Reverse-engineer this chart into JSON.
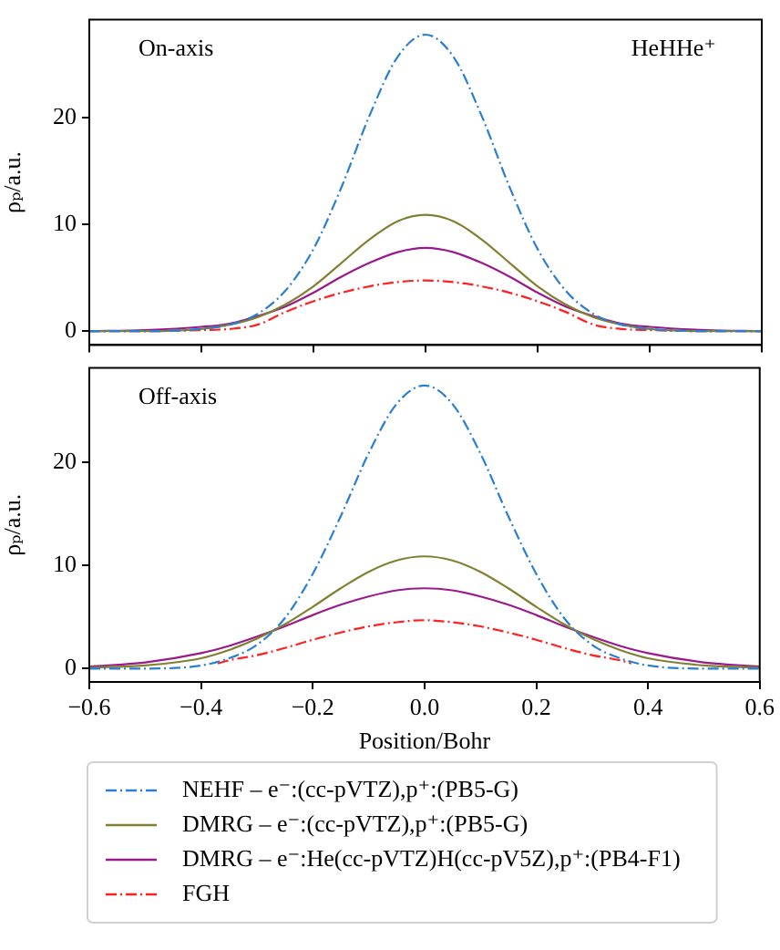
{
  "chart_data": [
    {
      "type": "line",
      "ylabel": "ρₚ/a.u.",
      "annotations": [
        "On-axis",
        "HeHHe⁺"
      ],
      "x": [
        -0.6,
        -0.5,
        -0.4,
        -0.35,
        -0.3,
        -0.25,
        -0.2,
        -0.15,
        -0.1,
        -0.05,
        0,
        0.05,
        0.1,
        0.15,
        0.2,
        0.25,
        0.3,
        0.35,
        0.4,
        0.5,
        0.6
      ],
      "xlim": [
        -0.6,
        0.6
      ],
      "xticks": [
        {
          "value": -0.6,
          "label": null
        },
        {
          "value": -0.4,
          "label": null
        },
        {
          "value": -0.2,
          "label": null
        },
        {
          "value": 0,
          "label": null
        },
        {
          "value": 0.2,
          "label": null
        },
        {
          "value": 0.4,
          "label": null
        },
        {
          "value": 0.6,
          "label": null
        }
      ],
      "ylim": [
        -1.3,
        29.2
      ],
      "yticks": [
        0,
        10,
        20
      ],
      "tick_labels": "y",
      "legend": false,
      "series": [
        {
          "color": "#2a7fd0",
          "line_style": "dashed",
          "values": [
            0,
            0,
            0.2,
            0.6,
            1.6,
            3.8,
            7.7,
            13.5,
            20.2,
            25.7,
            27.8,
            25.7,
            20.2,
            13.5,
            7.7,
            3.8,
            1.6,
            0.6,
            0.2,
            0,
            0
          ]
        },
        {
          "color": "#808033",
          "line_style": "solid",
          "values": [
            0,
            0,
            0.2,
            0.6,
            1.3,
            2.5,
            4.2,
            6.4,
            8.6,
            10.3,
            10.9,
            10.3,
            8.6,
            6.4,
            4.2,
            2.5,
            1.3,
            0.6,
            0.2,
            0,
            0
          ]
        },
        {
          "color": "#9a1a8a",
          "line_style": "solid",
          "values": [
            0,
            0.1,
            0.4,
            0.7,
            1.4,
            2.3,
            3.6,
            5.1,
            6.4,
            7.4,
            7.8,
            7.4,
            6.4,
            5.1,
            3.6,
            2.3,
            1.4,
            0.7,
            0.4,
            0.1,
            0
          ]
        },
        {
          "color": "#ff2020",
          "line_style": "dashed",
          "values": [
            0,
            0,
            0.1,
            0.2,
            0.6,
            1.8,
            2.8,
            3.6,
            4.2,
            4.6,
            4.75,
            4.6,
            4.2,
            3.6,
            2.8,
            1.8,
            0.6,
            0.2,
            0.1,
            0,
            0
          ]
        }
      ]
    },
    {
      "type": "line",
      "xlabel": "Position/Bohr",
      "ylabel": "ρₚ/a.u.",
      "annotations": [
        "Off-axis"
      ],
      "x": [
        -0.6,
        -0.5,
        -0.4,
        -0.35,
        -0.3,
        -0.25,
        -0.2,
        -0.15,
        -0.1,
        -0.05,
        0,
        0.05,
        0.1,
        0.15,
        0.2,
        0.25,
        0.3,
        0.35,
        0.4,
        0.5,
        0.6
      ],
      "xlim": [
        -0.6,
        0.6
      ],
      "xticks": [
        {
          "value": -0.6,
          "label": "−0.6"
        },
        {
          "value": -0.4,
          "label": "−0.4"
        },
        {
          "value": -0.2,
          "label": "−0.2"
        },
        {
          "value": 0,
          "label": "0.0"
        },
        0.2,
        0.4,
        0.6
      ],
      "ylim": [
        -1.3,
        29.2
      ],
      "yticks": [
        0,
        10,
        20
      ],
      "legend": "bottom",
      "series": [
        {
          "name": "NEHF – e⁻:(cc-pVTZ),p⁺:(PB5-G)",
          "color": "#2a7fd0",
          "line_style": "dashed",
          "values": [
            0,
            0,
            0.3,
            1,
            2.3,
            4.9,
            9.2,
            14.8,
            20.9,
            25.7,
            27.5,
            25.7,
            20.9,
            14.8,
            9.2,
            4.9,
            2.3,
            1,
            0.3,
            0,
            0
          ]
        },
        {
          "name": "DMRG – e⁻:(cc-pVTZ),p⁺:(PB5-G)",
          "color": "#808033",
          "line_style": "solid",
          "values": [
            0.1,
            0.3,
            1,
            1.8,
            2.9,
            4.3,
            6,
            7.8,
            9.4,
            10.5,
            10.9,
            10.5,
            9.4,
            7.8,
            6,
            4.3,
            2.9,
            1.8,
            1,
            0.3,
            0.1
          ]
        },
        {
          "name": "DMRG – e⁻:He(cc-pVTZ)H(cc-pV5Z),p⁺:(PB4-F1)",
          "color": "#9a1a8a",
          "line_style": "solid",
          "values": [
            0.2,
            0.6,
            1.5,
            2.2,
            3.1,
            4.1,
            5.2,
            6.2,
            7,
            7.6,
            7.8,
            7.6,
            7,
            6.2,
            5.2,
            4.1,
            3.1,
            2.2,
            1.5,
            0.6,
            0.2
          ]
        },
        {
          "name": "FGH",
          "color": "#ff2020",
          "line_style": "dashed",
          "x": [
            -0.37,
            -0.35,
            -0.3,
            -0.25,
            -0.2,
            -0.15,
            -0.1,
            -0.05,
            0,
            0.05,
            0.1,
            0.15,
            0.2,
            0.25,
            0.3,
            0.35,
            0.37
          ],
          "values": [
            0.5,
            0.8,
            1.3,
            2,
            2.8,
            3.5,
            4.1,
            4.5,
            4.7,
            4.5,
            4.1,
            3.5,
            2.8,
            2,
            1.3,
            0.8,
            0.5
          ]
        }
      ]
    }
  ]
}
